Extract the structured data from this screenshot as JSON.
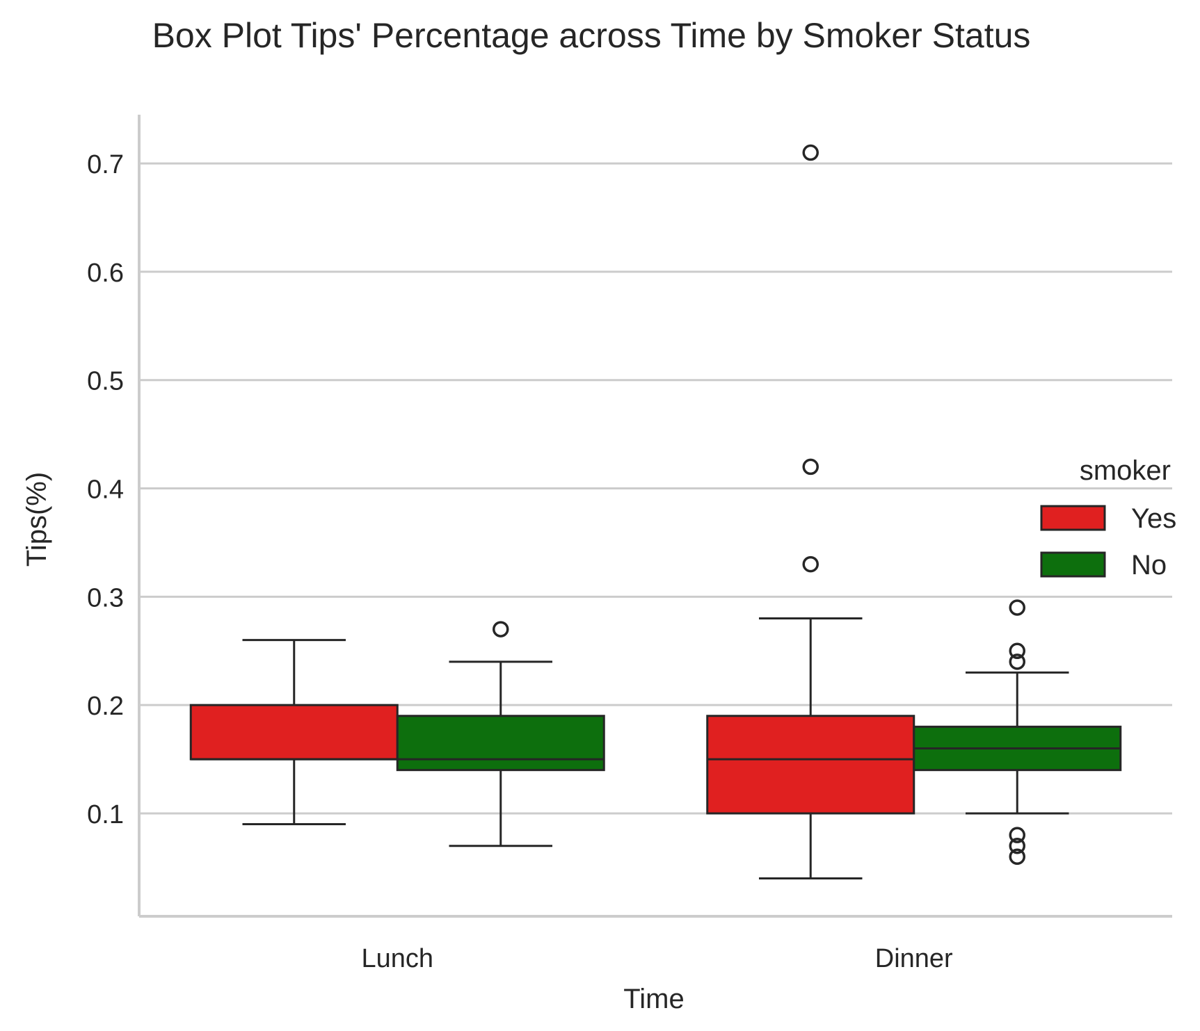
{
  "chart_data": {
    "type": "box",
    "title": "Box Plot Tips' Percentage across Time by Smoker Status",
    "xlabel": "Time",
    "ylabel": "Tips(%)",
    "categories": [
      "Lunch",
      "Dinner"
    ],
    "ylim": [
      0.005,
      0.745
    ],
    "yticks": [
      0.1,
      0.2,
      0.3,
      0.4,
      0.5,
      0.6,
      0.7
    ],
    "ytick_labels": [
      "0.1",
      "0.2",
      "0.3",
      "0.4",
      "0.5",
      "0.6",
      "0.7"
    ],
    "grid": "horizontal",
    "legend": {
      "title": "smoker",
      "position": "right"
    },
    "series": [
      {
        "name": "Yes",
        "color": "#e02020",
        "boxes": [
          {
            "category": "Lunch",
            "whisker_low": 0.09,
            "q1": 0.15,
            "median": 0.15,
            "q3": 0.2,
            "whisker_high": 0.26,
            "outliers": []
          },
          {
            "category": "Dinner",
            "whisker_low": 0.04,
            "q1": 0.1,
            "median": 0.15,
            "q3": 0.19,
            "whisker_high": 0.28,
            "outliers": [
              0.71,
              0.42,
              0.33
            ]
          }
        ]
      },
      {
        "name": "No",
        "color": "#0d6f0d",
        "boxes": [
          {
            "category": "Lunch",
            "whisker_low": 0.07,
            "q1": 0.14,
            "median": 0.15,
            "q3": 0.19,
            "whisker_high": 0.24,
            "outliers": [
              0.27
            ]
          },
          {
            "category": "Dinner",
            "whisker_low": 0.1,
            "q1": 0.14,
            "median": 0.16,
            "q3": 0.18,
            "whisker_high": 0.23,
            "outliers": [
              0.29,
              0.25,
              0.24,
              0.08,
              0.07,
              0.06
            ]
          }
        ]
      }
    ]
  }
}
